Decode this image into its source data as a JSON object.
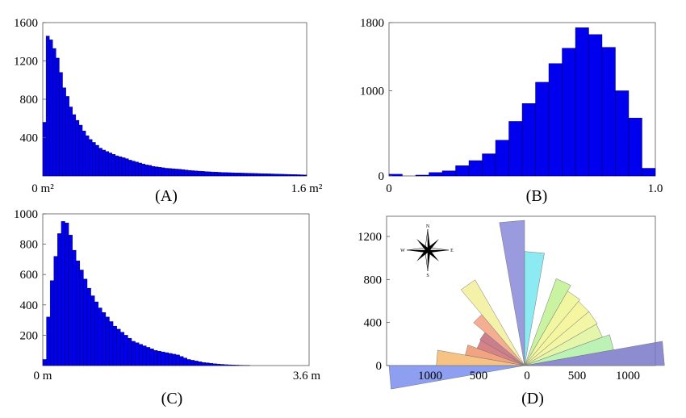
{
  "chart_data": [
    {
      "type": "bar",
      "caption": "(A)",
      "x_tick_labels": [
        "0 m²",
        "1.6 m²"
      ],
      "xlim": [
        0,
        1.6
      ],
      "y_ticks": [
        400,
        800,
        1200,
        1600
      ],
      "ylim": [
        0,
        1600
      ],
      "bar_color": "#0000ee",
      "bin_width": 0.02,
      "values": [
        560,
        1460,
        1420,
        1330,
        1230,
        1080,
        920,
        830,
        720,
        640,
        580,
        530,
        470,
        420,
        380,
        350,
        320,
        290,
        270,
        255,
        240,
        225,
        210,
        200,
        190,
        180,
        165,
        155,
        145,
        135,
        125,
        115,
        110,
        100,
        95,
        90,
        85,
        80,
        78,
        75,
        72,
        70,
        66,
        62,
        58,
        55,
        52,
        50,
        48,
        45,
        43,
        41,
        40,
        38,
        36,
        35,
        34,
        33,
        32,
        31,
        30,
        29,
        28,
        27,
        26,
        25,
        24,
        23,
        22,
        21,
        20,
        19,
        18,
        17,
        16,
        15,
        14,
        13,
        12,
        10
      ]
    },
    {
      "type": "bar",
      "caption": "(B)",
      "x_tick_labels": [
        "0",
        "1.0"
      ],
      "xlim": [
        0,
        1
      ],
      "y_ticks": [
        0,
        1000,
        1800
      ],
      "ylim": [
        0,
        1800
      ],
      "bar_color": "#0000ee",
      "bin_width": 0.05,
      "values": [
        20,
        0,
        10,
        40,
        60,
        120,
        180,
        260,
        420,
        640,
        850,
        1100,
        1320,
        1500,
        1740,
        1660,
        1510,
        1000,
        680,
        90
      ]
    },
    {
      "type": "bar",
      "caption": "(C)",
      "x_tick_labels": [
        "0 m",
        "3.6 m"
      ],
      "xlim": [
        0,
        3.6
      ],
      "y_ticks": [
        200,
        400,
        600,
        800,
        1000
      ],
      "ylim": [
        0,
        1000
      ],
      "bar_color": "#0000ee",
      "bin_width": 0.05,
      "values": [
        40,
        320,
        560,
        720,
        870,
        950,
        940,
        860,
        760,
        690,
        630,
        570,
        510,
        460,
        420,
        380,
        350,
        320,
        290,
        260,
        240,
        220,
        200,
        180,
        160,
        150,
        140,
        130,
        120,
        110,
        100,
        95,
        90,
        85,
        80,
        75,
        70,
        60,
        50,
        40,
        35,
        30,
        25,
        20,
        18,
        15,
        12,
        10,
        8,
        6,
        5,
        4,
        3,
        2,
        1,
        1
      ]
    },
    {
      "type": "rose",
      "caption": "(D)",
      "x_tick_labels": [
        "1000",
        "500",
        "0",
        "500",
        "1000"
      ],
      "y_ticks": [
        0,
        400,
        800,
        1200
      ],
      "radius_max": 1350,
      "sector_width_deg": 10,
      "compass_labels": {
        "n": "N",
        "s": "S",
        "e": "E",
        "w": "W"
      },
      "sectors": [
        {
          "start_deg": 260,
          "value": 1260,
          "color": "#7a8ef0"
        },
        {
          "start_deg": 270,
          "value": 820,
          "color": "#f5b870"
        },
        {
          "start_deg": 280,
          "value": 560,
          "color": "#f0946a"
        },
        {
          "start_deg": 290,
          "value": 470,
          "color": "#d06d70"
        },
        {
          "start_deg": 300,
          "value": 480,
          "color": "#c06878"
        },
        {
          "start_deg": 310,
          "value": 620,
          "color": "#f5a080"
        },
        {
          "start_deg": 320,
          "value": 920,
          "color": "#f2f09a"
        },
        {
          "start_deg": 330,
          "value": 0,
          "color": "#f5f5a0"
        },
        {
          "start_deg": 340,
          "value": 0,
          "color": "#f5f5a0"
        },
        {
          "start_deg": 350,
          "value": 1350,
          "color": "#8888d8"
        },
        {
          "start_deg": 0,
          "value": 1060,
          "color": "#78e8f0"
        },
        {
          "start_deg": 10,
          "value": 0,
          "color": "#a0f0a0"
        },
        {
          "start_deg": 20,
          "value": 860,
          "color": "#c0f090"
        },
        {
          "start_deg": 30,
          "value": 800,
          "color": "#eef590"
        },
        {
          "start_deg": 40,
          "value": 780,
          "color": "#f5f590"
        },
        {
          "start_deg": 50,
          "value": 780,
          "color": "#f0f595"
        },
        {
          "start_deg": 60,
          "value": 770,
          "color": "#dff59a"
        },
        {
          "start_deg": 70,
          "value": 840,
          "color": "#b0f0a8"
        },
        {
          "start_deg": 80,
          "value": 1300,
          "color": "#7a78c8"
        }
      ]
    }
  ]
}
